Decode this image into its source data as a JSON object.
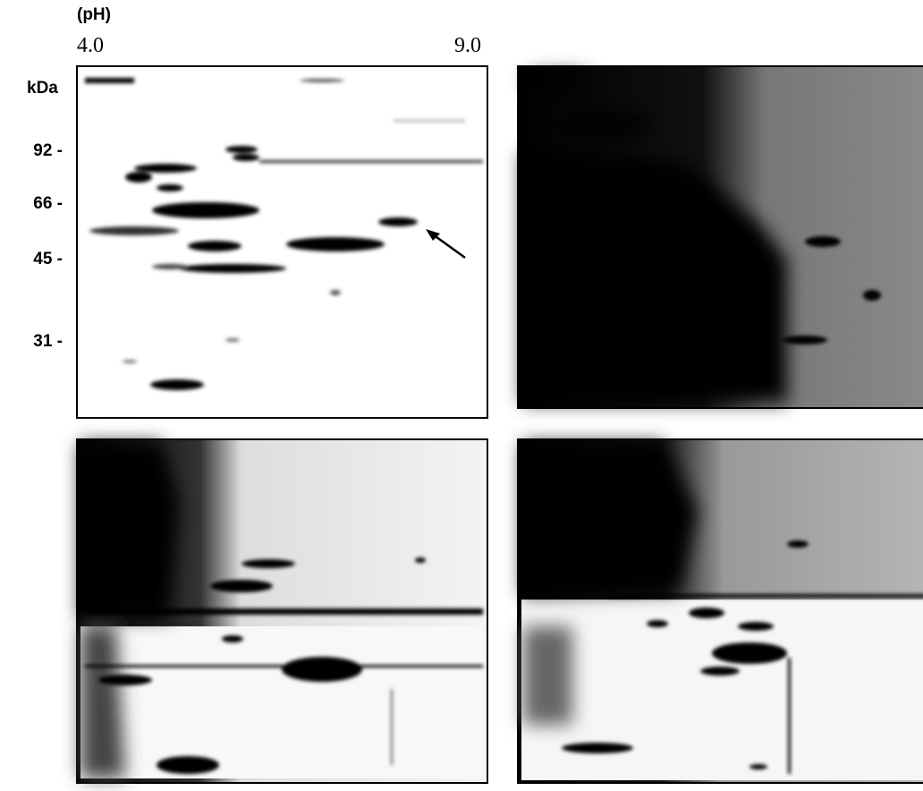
{
  "header": {
    "unit_label": "(pH)",
    "ph_start": "4.0",
    "ph_end": "9.0"
  },
  "mass_axis": {
    "unit_label": "kDa",
    "markers": [
      "92 -",
      "66 -",
      "45 -",
      "31 -"
    ]
  }
}
